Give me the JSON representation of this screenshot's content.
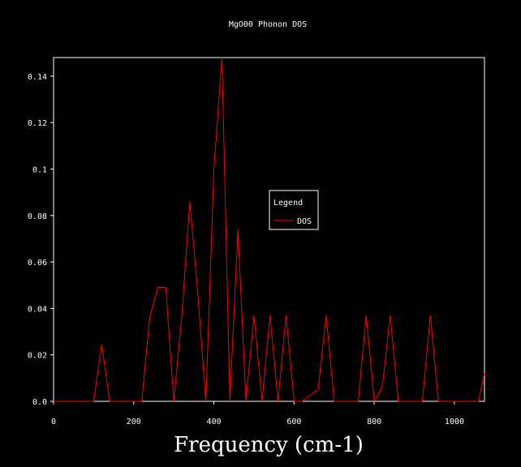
{
  "chart_data": {
    "type": "line",
    "title": "MgO00 Phonon DOS",
    "xlabel": "Frequency (cm-1)",
    "ylabel": "",
    "xlim": [
      0,
      1075
    ],
    "ylim": [
      0,
      0.148
    ],
    "x_ticks": [
      0,
      200,
      400,
      600,
      800,
      1000
    ],
    "y_ticks": [
      0.0,
      0.02,
      0.04,
      0.06,
      0.08,
      0.1,
      0.12,
      0.14
    ],
    "x_tick_labels": [
      "0",
      "200",
      "400",
      "600",
      "800",
      "1000"
    ],
    "y_tick_labels": [
      "0.0",
      "0.02",
      "0.04",
      "0.06",
      "0.08",
      "0.1",
      "0.12",
      "0.14"
    ],
    "grid": false,
    "legend": {
      "title": "Legend",
      "placement": "center-right"
    },
    "series": [
      {
        "name": "DOS",
        "color": "#ff0000",
        "x": [
          0,
          100,
          120,
          140,
          220,
          240,
          260,
          280,
          300,
          320,
          340,
          360,
          380,
          400,
          420,
          440,
          460,
          480,
          500,
          520,
          540,
          560,
          580,
          600,
          620,
          660,
          680,
          700,
          760,
          780,
          800,
          820,
          840,
          860,
          920,
          940,
          960,
          1060,
          1075
        ],
        "y": [
          0,
          0,
          0.0245,
          0,
          0,
          0.036,
          0.049,
          0.049,
          0,
          0.037,
          0.086,
          0.046,
          0,
          0.1,
          0.148,
          0,
          0.074,
          0,
          0.037,
          0,
          0.037,
          0,
          0.037,
          0,
          0,
          0.005,
          0.037,
          0,
          0,
          0.037,
          0,
          0.006,
          0.037,
          0,
          0,
          0.037,
          0,
          0,
          0.012
        ]
      }
    ]
  }
}
